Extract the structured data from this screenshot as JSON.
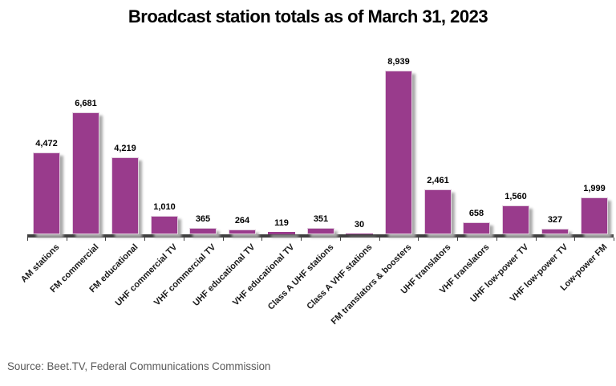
{
  "title": "Broadcast station totals as of March 31, 2023",
  "source": "Source: Beet.TV, Federal Communications Commission",
  "colors": {
    "bar_fill": "#993b8c",
    "bar_border": "#e2d0df",
    "bar_shadow": "#ababab",
    "axis_line": "#3f3f3f",
    "title_text": "#000000",
    "value_label_text": "#000000",
    "category_label_text": "#1a1a1a",
    "source_text": "#595959",
    "background": "#ffffff"
  },
  "chart_data": {
    "type": "bar",
    "title": "Broadcast station totals as of March 31, 2023",
    "categories": [
      "AM stations",
      "FM commercial",
      "FM educational",
      "UHF commercial TV",
      "VHF commercial TV",
      "UHF educational TV",
      "VHF educational TV",
      "Class A UHF stations",
      "Class A VHF stations",
      "FM translators & boosters",
      "UHF translators",
      "VHF translators",
      "UHF low-power TV",
      "VHF low-power TV",
      "Low-power FM"
    ],
    "values": [
      4472,
      6681,
      4219,
      1010,
      365,
      264,
      119,
      351,
      30,
      8939,
      2461,
      658,
      1560,
      327,
      1999
    ],
    "value_labels": [
      "4,472",
      "6,681",
      "4,219",
      "1,010",
      "365",
      "264",
      "119",
      "351",
      "30",
      "8,939",
      "2,461",
      "658",
      "1,560",
      "327",
      "1,999"
    ],
    "xlabel": "",
    "ylabel": "",
    "ylim": [
      0,
      9000
    ],
    "grid": false,
    "legend": false,
    "data_labels": true,
    "category_label_rotation_deg": 45,
    "source": "Source: Beet.TV, Federal Communications Commission"
  }
}
